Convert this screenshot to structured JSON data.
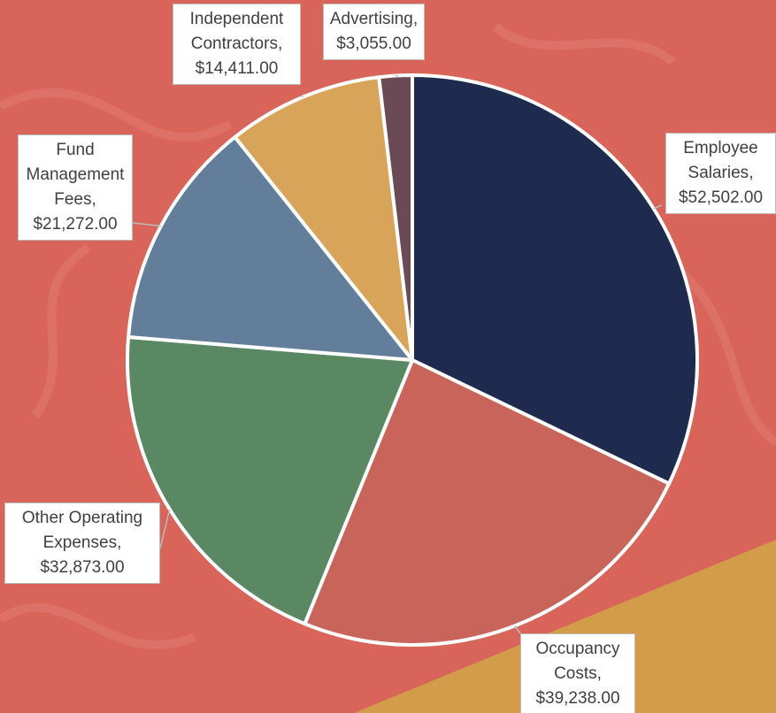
{
  "chart_data": {
    "type": "pie",
    "categories": [
      "Employee Salaries",
      "Occupancy Costs",
      "Other Operating Expenses",
      "Fund Management Fees",
      "Independent Contractors",
      "Advertising"
    ],
    "values": [
      52502,
      39238,
      32873,
      21272,
      14411,
      3055
    ],
    "value_labels": [
      "$52,502.00",
      "$39,238.00",
      "$32,873.00",
      "$21,272.00",
      "$14,411.00",
      "$3,055.00"
    ],
    "colors": [
      "#1e2a4e",
      "#c9645b",
      "#5a8862",
      "#627e9a",
      "#d8a45a",
      "#6a4b55"
    ]
  }
}
